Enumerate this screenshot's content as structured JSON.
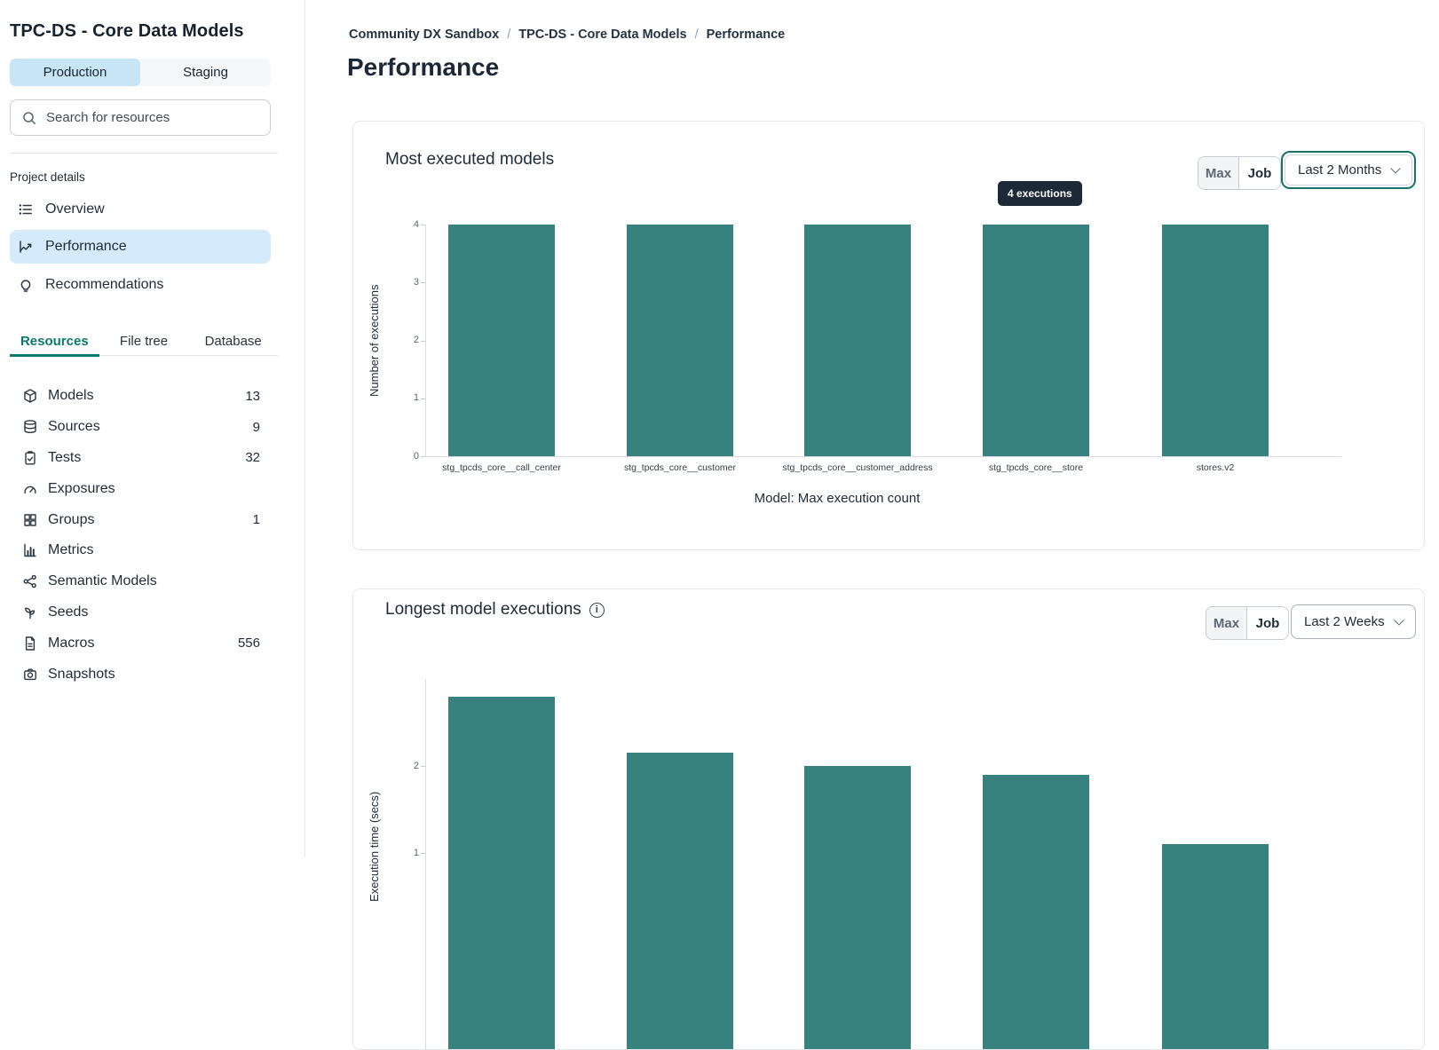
{
  "colors": {
    "bar_teal": "#37827f",
    "active_blue": "#d5eafa",
    "production_tab_blue": "#c8e5f7",
    "accent_teal_text": "#0b7a6e",
    "focus_ring_teal": "#17726b",
    "tooltip_bg": "#1d2936"
  },
  "sidebar": {
    "title": "TPC-DS - Core Data Models",
    "env_tabs": [
      {
        "label": "Production",
        "active": true
      },
      {
        "label": "Staging",
        "active": false
      }
    ],
    "search_placeholder": "Search for resources",
    "section_label": "Project details",
    "nav": [
      {
        "label": "Overview",
        "icon": "list-icon",
        "active": false
      },
      {
        "label": "Performance",
        "icon": "trend-icon",
        "active": true
      },
      {
        "label": "Recommendations",
        "icon": "lightbulb-icon",
        "active": false
      }
    ],
    "resource_tabs": [
      {
        "label": "Resources",
        "active": true
      },
      {
        "label": "File tree",
        "active": false
      },
      {
        "label": "Database",
        "active": false
      }
    ],
    "resources": [
      {
        "label": "Models",
        "count": "13",
        "icon": "cube"
      },
      {
        "label": "Sources",
        "count": "9",
        "icon": "database"
      },
      {
        "label": "Tests",
        "count": "32",
        "icon": "clipboard"
      },
      {
        "label": "Exposures",
        "count": "",
        "icon": "gauge"
      },
      {
        "label": "Groups",
        "count": "1",
        "icon": "grid"
      },
      {
        "label": "Metrics",
        "count": "",
        "icon": "barchart"
      },
      {
        "label": "Semantic Models",
        "count": "",
        "icon": "nodes"
      },
      {
        "label": "Seeds",
        "count": "",
        "icon": "sprout"
      },
      {
        "label": "Macros",
        "count": "556",
        "icon": "document"
      },
      {
        "label": "Snapshots",
        "count": "",
        "icon": "camera"
      }
    ]
  },
  "breadcrumb": {
    "separator": "/",
    "items": [
      {
        "label": "Community DX Sandbox",
        "current": false
      },
      {
        "label": "TPC-DS - Core Data Models",
        "current": false
      },
      {
        "label": "Performance",
        "current": true
      }
    ]
  },
  "page_title": "Performance",
  "cards": [
    {
      "title": "Most executed models",
      "toggle": {
        "max": "Max",
        "job": "Job"
      },
      "range_label": "Last 2 Months",
      "tooltip": "4 executions"
    },
    {
      "title": "Longest model executions",
      "toggle": {
        "max": "Max",
        "job": "Job"
      },
      "range_label": "Last 2 Weeks"
    }
  ],
  "chart_data": [
    {
      "type": "bar",
      "title": "Most executed models",
      "categories": [
        "stg_tpcds_core__call_center",
        "stg_tpcds_core__customer",
        "stg_tpcds_core__customer_address",
        "stg_tpcds_core__store",
        "stores.v2"
      ],
      "values": [
        4,
        4,
        4,
        4,
        4
      ],
      "xlabel": "Model: Max execution count",
      "ylabel": "Number of executions",
      "ylim": [
        0,
        4
      ],
      "yticks": [
        4,
        3,
        2,
        1,
        0
      ],
      "grid": false,
      "legend": "none",
      "tooltip": {
        "text": "4 executions",
        "bar_index": 3
      }
    },
    {
      "type": "bar",
      "title": "Longest model executions",
      "values": [
        2.8,
        2.15,
        2.0,
        1.9,
        1.1
      ],
      "ylabel": "Execution time (secs)",
      "yticks_visible": [
        2,
        1
      ],
      "grid": false,
      "legend": "none",
      "note": "chart truncated by viewport bottom; x-axis labels not visible"
    }
  ]
}
